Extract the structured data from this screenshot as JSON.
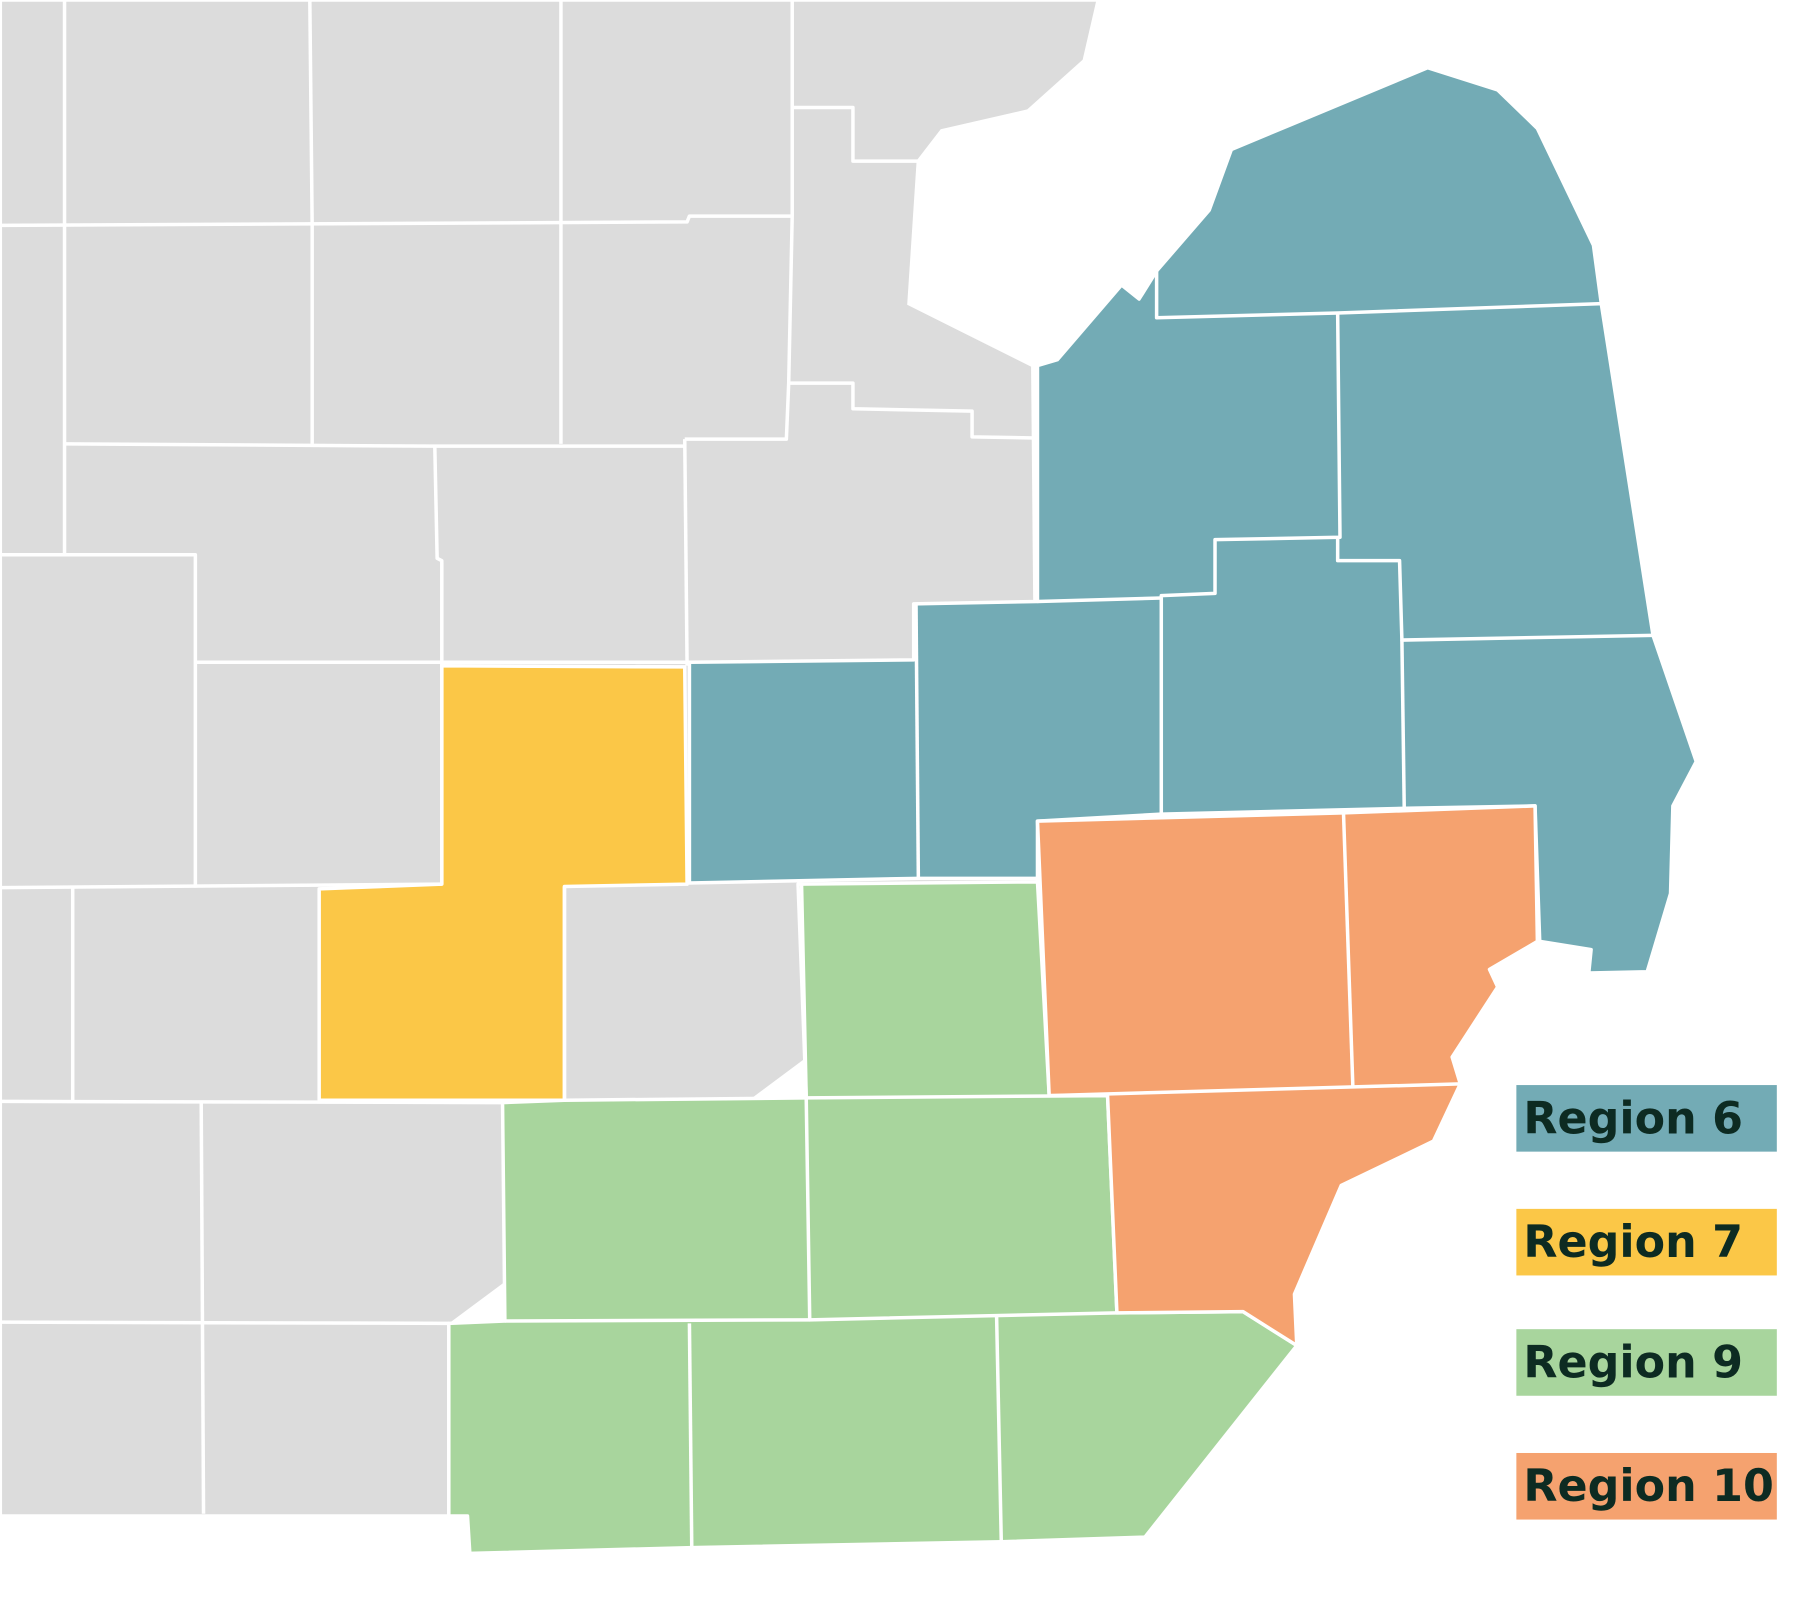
{
  "legend": [
    {
      "label": "Region 6",
      "color": "#73abb5"
    },
    {
      "label": "Region 7",
      "color": "#fbc747"
    },
    {
      "label": "Region 9",
      "color": "#a8d59d"
    },
    {
      "label": "Region 10",
      "color": "#f5a26f"
    }
  ]
}
